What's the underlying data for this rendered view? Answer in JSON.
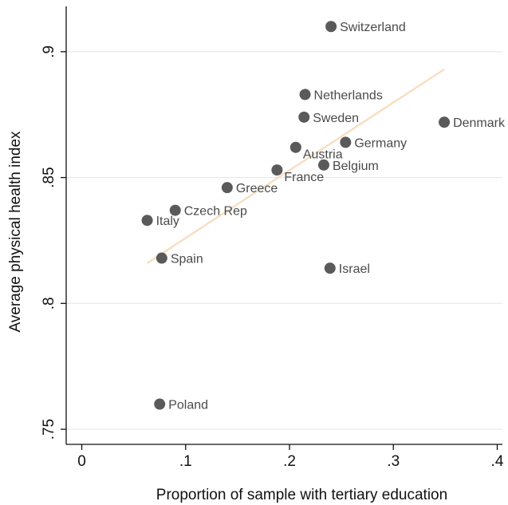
{
  "chart_data": {
    "type": "scatter",
    "xlabel": "Proportion of sample with tertiary education",
    "ylabel": "Average physical health index",
    "xlim": [
      -0.015,
      0.405
    ],
    "ylim": [
      0.744,
      0.918
    ],
    "x_ticks": [
      0,
      0.1,
      0.2,
      0.3,
      0.4
    ],
    "x_tick_labels": [
      "0",
      ".1",
      ".2",
      ".3",
      ".4"
    ],
    "y_ticks": [
      0.75,
      0.8,
      0.85,
      0.9
    ],
    "y_tick_labels": [
      ".75",
      ".8",
      ".85",
      ".9"
    ],
    "grid": "horizontal",
    "legend": "none",
    "colors": {
      "points": "#5a5a5a",
      "fit_line": "#f7dfc3",
      "grid": "#e8e8e8",
      "labels": "#4a4a4a",
      "axis": "#111111"
    },
    "points": [
      {
        "label": "Switzerland",
        "x": 0.24,
        "y": 0.91,
        "label_pos": "right"
      },
      {
        "label": "Netherlands",
        "x": 0.215,
        "y": 0.883,
        "label_pos": "right"
      },
      {
        "label": "Sweden",
        "x": 0.214,
        "y": 0.874,
        "label_pos": "right"
      },
      {
        "label": "Denmark",
        "x": 0.349,
        "y": 0.872,
        "label_pos": "right"
      },
      {
        "label": "Austria",
        "x": 0.206,
        "y": 0.862,
        "label_pos": "below-right"
      },
      {
        "label": "Germany",
        "x": 0.254,
        "y": 0.864,
        "label_pos": "right"
      },
      {
        "label": "Belgium",
        "x": 0.233,
        "y": 0.855,
        "label_pos": "right"
      },
      {
        "label": "France",
        "x": 0.188,
        "y": 0.853,
        "label_pos": "below-right"
      },
      {
        "label": "Greece",
        "x": 0.14,
        "y": 0.846,
        "label_pos": "right"
      },
      {
        "label": "Czech Rep",
        "x": 0.09,
        "y": 0.837,
        "label_pos": "right"
      },
      {
        "label": "Italy",
        "x": 0.063,
        "y": 0.833,
        "label_pos": "right"
      },
      {
        "label": "Spain",
        "x": 0.077,
        "y": 0.818,
        "label_pos": "right"
      },
      {
        "label": "Israel",
        "x": 0.239,
        "y": 0.814,
        "label_pos": "right"
      },
      {
        "label": "Poland",
        "x": 0.075,
        "y": 0.76,
        "label_pos": "right"
      }
    ],
    "fit_line": {
      "x": [
        0.063,
        0.349
      ],
      "y": [
        0.816,
        0.893
      ]
    }
  }
}
